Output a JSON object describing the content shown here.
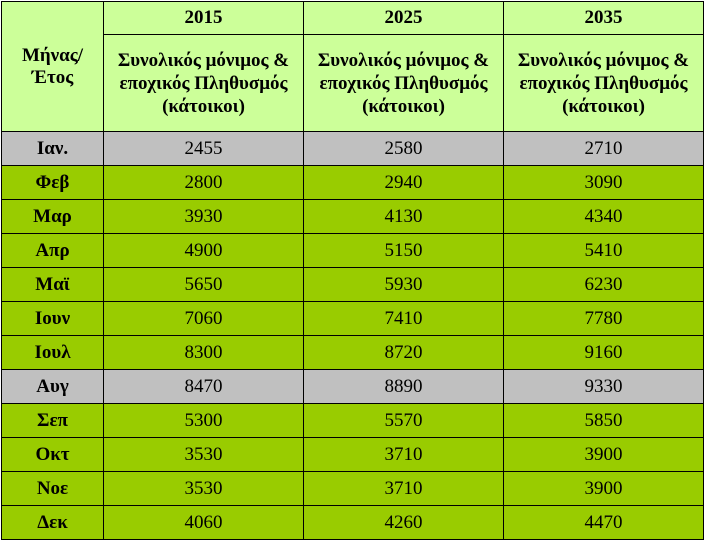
{
  "table": {
    "corner_header": "Μήνας/ Έτος",
    "years": [
      "2015",
      "2025",
      "2035"
    ],
    "subheader": "Συνολικός μόνιμος & εποχικός Πληθυσμός (κάτοικοι)",
    "rows": [
      {
        "month": "Ιαν.",
        "values": [
          "2455",
          "2580",
          "2710"
        ],
        "shade": "gray"
      },
      {
        "month": "Φεβ",
        "values": [
          "2800",
          "2940",
          "3090"
        ],
        "shade": "green"
      },
      {
        "month": "Μαρ",
        "values": [
          "3930",
          "4130",
          "4340"
        ],
        "shade": "green"
      },
      {
        "month": "Απρ",
        "values": [
          "4900",
          "5150",
          "5410"
        ],
        "shade": "green"
      },
      {
        "month": "Μαϊ",
        "values": [
          "5650",
          "5930",
          "6230"
        ],
        "shade": "green"
      },
      {
        "month": "Ιουν",
        "values": [
          "7060",
          "7410",
          "7780"
        ],
        "shade": "green"
      },
      {
        "month": "Ιουλ",
        "values": [
          "8300",
          "8720",
          "9160"
        ],
        "shade": "green"
      },
      {
        "month": "Αυγ",
        "values": [
          "8470",
          "8890",
          "9330"
        ],
        "shade": "gray"
      },
      {
        "month": "Σεπ",
        "values": [
          "5300",
          "5570",
          "5850"
        ],
        "shade": "green"
      },
      {
        "month": "Οκτ",
        "values": [
          "3530",
          "3710",
          "3900"
        ],
        "shade": "green"
      },
      {
        "month": "Νοε",
        "values": [
          "3530",
          "3710",
          "3900"
        ],
        "shade": "green"
      },
      {
        "month": "Δεκ",
        "values": [
          "4060",
          "4260",
          "4470"
        ],
        "shade": "green"
      }
    ]
  },
  "colors": {
    "header_light_green": "#ccff99",
    "row_green": "#99cc00",
    "row_gray": "#c0c0c0"
  }
}
